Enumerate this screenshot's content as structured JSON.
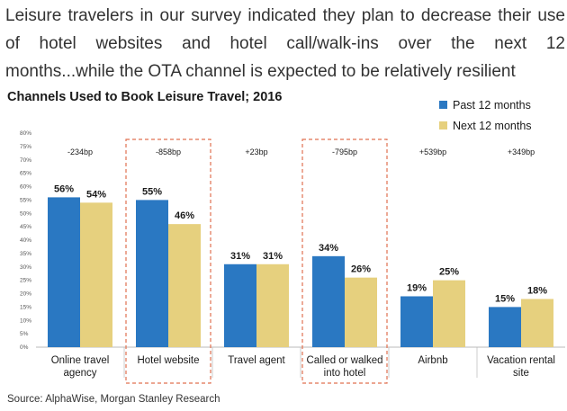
{
  "headline": {
    "line1": "Leisure travelers in our survey indicated they plan to decrease their use",
    "line2": "of hotel websites and hotel call/walk-ins over the next 12",
    "line3": "months...while the OTA channel is expected to be relatively resilient"
  },
  "source": "Source: AlphaWise, Morgan Stanley Research",
  "colors": {
    "past": "#2a78c2",
    "next": "#e6d07e",
    "highlight": "#e07050",
    "divider": "#cccccc"
  },
  "chart_data": {
    "type": "bar",
    "title": "Channels Used to Book Leisure Travel; 2016",
    "categories": [
      [
        "Online travel",
        "agency"
      ],
      [
        "Hotel website"
      ],
      [
        "Travel agent"
      ],
      [
        "Called or walked",
        "into hotel"
      ],
      [
        "Airbnb"
      ],
      [
        "Vacation rental",
        "site"
      ]
    ],
    "series": [
      {
        "name": "Past 12 months",
        "values": [
          56,
          55,
          31,
          34,
          19,
          15
        ]
      },
      {
        "name": "Next 12 months",
        "values": [
          54,
          46,
          31,
          26,
          25,
          18
        ]
      }
    ],
    "value_labels": [
      [
        "56%",
        "55%",
        "31%",
        "34%",
        "19%",
        "15%"
      ],
      [
        "54%",
        "46%",
        "31%",
        "26%",
        "25%",
        "18%"
      ]
    ],
    "changes": [
      "-234bp",
      "-858bp",
      "+23bp",
      "-795bp",
      "+539bp",
      "+349bp"
    ],
    "highlighted": [
      1,
      3
    ],
    "ylim": [
      0,
      80
    ],
    "yticks": [
      0,
      5,
      10,
      15,
      20,
      25,
      30,
      35,
      40,
      45,
      50,
      55,
      60,
      65,
      70,
      75,
      80
    ],
    "ytick_labels": [
      "0%",
      "5%",
      "10%",
      "15%",
      "20%",
      "25%",
      "30%",
      "35%",
      "40%",
      "45%",
      "50%",
      "55%",
      "60%",
      "65%",
      "70%",
      "75%",
      "80%"
    ],
    "legend_position": "top-right",
    "grid": false
  }
}
